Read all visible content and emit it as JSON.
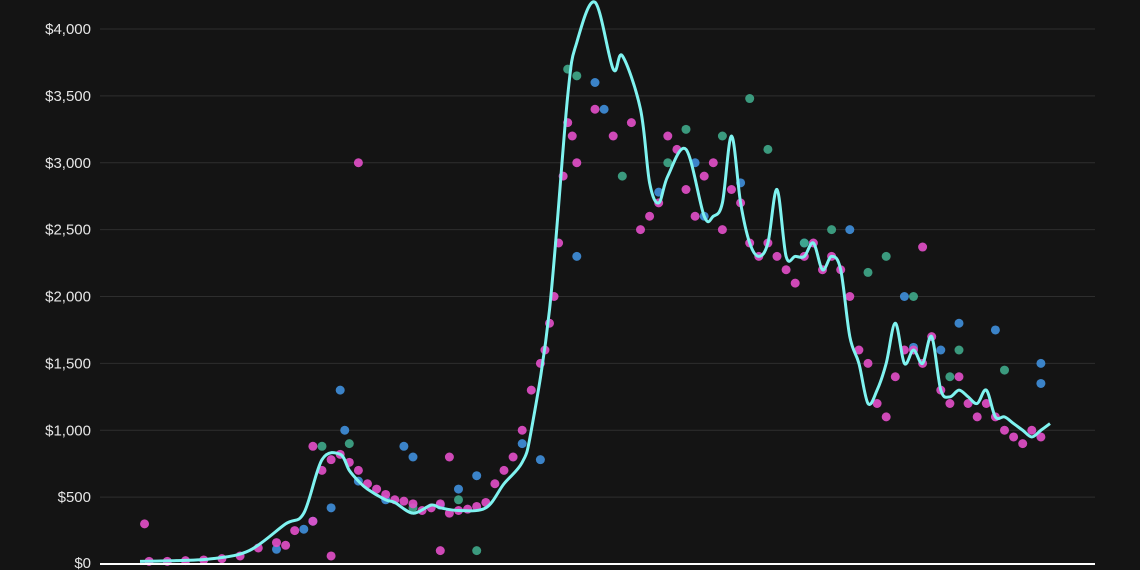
{
  "chart_data": {
    "type": "scatter",
    "title": "",
    "xlabel": "",
    "ylabel": "",
    "ylim": [
      0,
      4200
    ],
    "xlim": [
      0,
      100
    ],
    "grid": true,
    "legend": "none",
    "y_ticks": [
      {
        "value": 0,
        "label": "$0"
      },
      {
        "value": 500,
        "label": "$500"
      },
      {
        "value": 1000,
        "label": "$1,000"
      },
      {
        "value": 1500,
        "label": "$1,500"
      },
      {
        "value": 2000,
        "label": "$2,000"
      },
      {
        "value": 2500,
        "label": "$2,500"
      },
      {
        "value": 3000,
        "label": "$3,000"
      },
      {
        "value": 3500,
        "label": "$3,500"
      },
      {
        "value": 4000,
        "label": "$4,000"
      }
    ],
    "colors": {
      "background": "#141414",
      "grid": "#2e2e2e",
      "axis": "#ffffff",
      "trend": "#7ff3f0",
      "blue": "#3f8fdc",
      "green": "#3fa88a",
      "pink": "#e34fc9"
    },
    "trend_line": {
      "x": [
        0,
        4,
        8,
        12,
        16,
        18,
        20,
        22,
        23,
        24,
        25,
        27,
        28,
        30,
        32,
        33,
        35,
        38,
        40,
        42,
        43,
        45,
        47,
        48,
        50,
        52,
        53,
        55,
        56,
        57,
        58,
        60,
        62,
        63,
        64,
        65,
        66,
        67,
        68,
        69,
        70,
        71,
        72,
        73,
        74,
        75,
        76,
        77,
        78,
        79,
        80,
        81,
        82,
        83,
        84,
        85,
        86,
        87,
        88,
        89,
        90,
        91,
        92,
        93,
        94,
        95,
        96,
        97,
        98,
        99,
        100
      ],
      "y": [
        20,
        25,
        40,
        100,
        300,
        380,
        780,
        820,
        700,
        620,
        560,
        480,
        460,
        380,
        440,
        420,
        400,
        420,
        600,
        760,
        1000,
        1900,
        3500,
        3900,
        4200,
        3700,
        3800,
        3400,
        2850,
        2700,
        2900,
        3100,
        2600,
        2600,
        2700,
        3200,
        2700,
        2400,
        2300,
        2400,
        2800,
        2300,
        2300,
        2300,
        2400,
        2200,
        2300,
        2200,
        1700,
        1500,
        1200,
        1300,
        1500,
        1800,
        1500,
        1600,
        1500,
        1700,
        1300,
        1250,
        1300,
        1250,
        1200,
        1300,
        1100,
        1100,
        1050,
        1000,
        950,
        1000,
        1050
      ]
    },
    "series": [
      {
        "color_key": "blue",
        "x": [
          15,
          18,
          19,
          21,
          22,
          22.5,
          24,
          27,
          29,
          30,
          33,
          35,
          37,
          42,
          44,
          48,
          50,
          51,
          57,
          61,
          62,
          66,
          73,
          78,
          84,
          85,
          88,
          90,
          94,
          99,
          99
        ],
        "y": [
          110,
          260,
          320,
          420,
          1300,
          1000,
          620,
          480,
          880,
          800,
          440,
          560,
          660,
          900,
          780,
          2300,
          3600,
          3400,
          2780,
          3000,
          2600,
          2850,
          2400,
          2500,
          2000,
          1620,
          1600,
          1800,
          1750,
          1500,
          1350
        ]
      },
      {
        "color_key": "green",
        "x": [
          20,
          23,
          30,
          35,
          37,
          47,
          48,
          53,
          58,
          60,
          64,
          67,
          69,
          73,
          76,
          80,
          82,
          85,
          89,
          90,
          95
        ],
        "y": [
          880,
          900,
          420,
          480,
          100,
          3700,
          3650,
          2900,
          3000,
          3250,
          3200,
          3480,
          3100,
          2400,
          2500,
          2180,
          2300,
          2000,
          1400,
          1600,
          1450
        ]
      },
      {
        "color_key": "pink",
        "x": [
          1,
          3,
          5,
          7,
          9,
          11,
          13,
          15,
          17,
          19,
          20,
          21,
          22,
          23,
          24,
          25,
          26,
          27,
          28,
          29,
          30,
          31,
          32,
          33,
          34,
          35,
          36,
          37,
          38,
          39,
          40,
          41,
          42,
          43,
          44,
          44.5,
          45,
          45.5,
          46,
          46.5,
          47,
          47.5,
          48,
          50,
          52,
          54,
          55,
          56,
          57,
          58,
          59,
          60,
          61,
          62,
          63,
          64,
          65,
          66,
          67,
          68,
          69,
          70,
          71,
          72,
          73,
          74,
          75,
          76,
          77,
          78,
          79,
          80,
          81,
          82,
          83,
          84,
          85,
          86,
          87,
          88,
          89,
          90,
          91,
          92,
          93,
          94,
          95,
          96,
          97,
          98,
          99,
          0.5,
          24,
          16,
          21,
          33,
          34,
          19,
          86
        ],
        "y": [
          20,
          20,
          25,
          30,
          40,
          60,
          120,
          160,
          250,
          320,
          700,
          780,
          820,
          760,
          700,
          600,
          560,
          520,
          480,
          470,
          450,
          400,
          420,
          450,
          380,
          400,
          410,
          430,
          460,
          600,
          700,
          800,
          1000,
          1300,
          1500,
          1600,
          1800,
          2000,
          2400,
          2900,
          3300,
          3200,
          3000,
          3400,
          3200,
          3300,
          2500,
          2600,
          2700,
          3200,
          3100,
          2800,
          2600,
          2900,
          3000,
          2500,
          2800,
          2700,
          2400,
          2300,
          2400,
          2300,
          2200,
          2100,
          2300,
          2400,
          2200,
          2300,
          2200,
          2000,
          1600,
          1500,
          1200,
          1100,
          1400,
          1600,
          1600,
          1500,
          1700,
          1300,
          1200,
          1400,
          1200,
          1100,
          1200,
          1100,
          1000,
          950,
          900,
          1000,
          950,
          300,
          3000,
          140,
          60,
          100,
          800,
          880,
          2370
        ]
      }
    ]
  }
}
